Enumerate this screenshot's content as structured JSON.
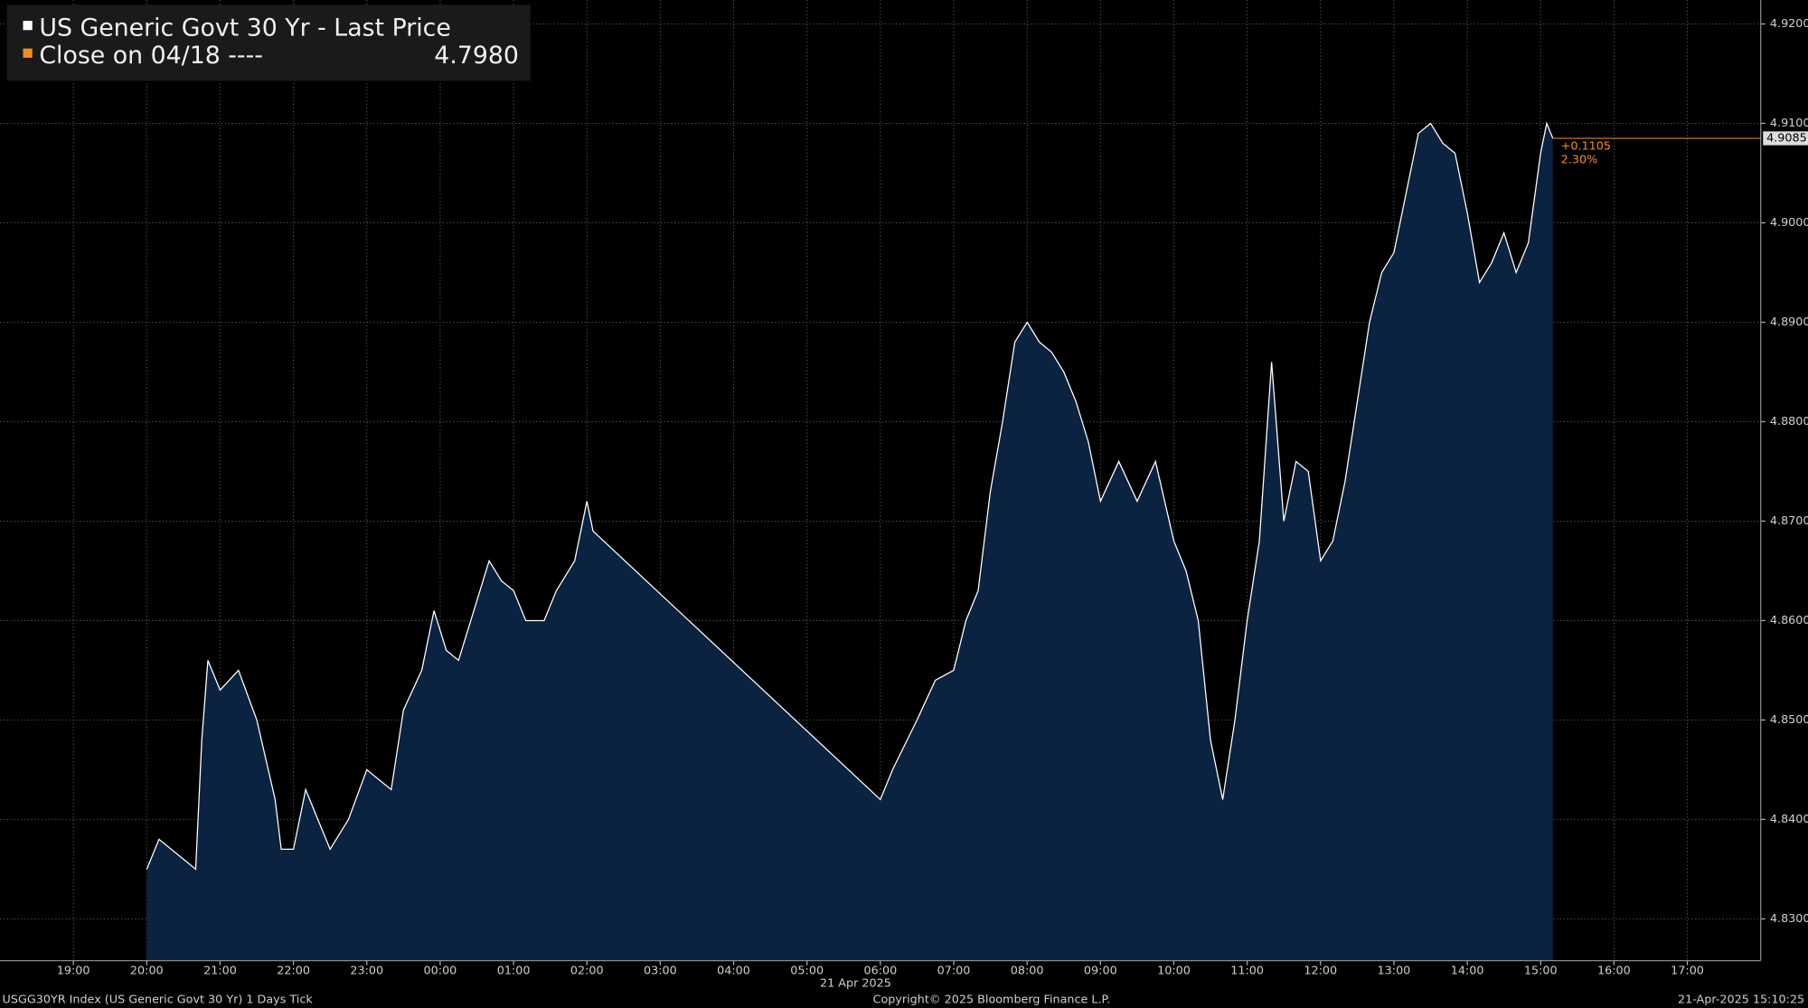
{
  "chart_data": {
    "type": "line",
    "legend": [
      {
        "name": "US Generic Govt 30 Yr - Last Price",
        "color": "#ffffff"
      },
      {
        "name": "Close on 04/18 ----",
        "color": "#f28e1c",
        "value": 4.798,
        "value_label": "4.7980"
      }
    ],
    "date_label": "21 Apr 2025",
    "footer_left": "USGG30YR Index (US Generic Govt 30 Yr) 1 Days  Tick",
    "footer_center": "Copyright© 2025 Bloomberg Finance L.P.",
    "footer_right": "21-Apr-2025 15:10:25",
    "last_price": 4.9085,
    "change_label": "+0.1105",
    "change_pct_label": "2.30%",
    "series": [
      {
        "name": "US Generic Govt 30 Yr - Last Price",
        "color": "#ffffff",
        "fill": "#0b2240",
        "x": [
          "2025-04-20T20:00",
          "2025-04-20T20:10",
          "2025-04-20T20:30",
          "2025-04-20T20:40",
          "2025-04-20T20:45",
          "2025-04-20T20:50",
          "2025-04-20T21:00",
          "2025-04-20T21:15",
          "2025-04-20T21:30",
          "2025-04-20T21:45",
          "2025-04-20T21:50",
          "2025-04-20T22:00",
          "2025-04-20T22:10",
          "2025-04-20T22:20",
          "2025-04-20T22:30",
          "2025-04-20T22:45",
          "2025-04-20T23:00",
          "2025-04-20T23:10",
          "2025-04-20T23:20",
          "2025-04-20T23:30",
          "2025-04-20T23:45",
          "2025-04-20T23:55",
          "2025-04-21T00:05",
          "2025-04-21T00:15",
          "2025-04-21T00:20",
          "2025-04-21T00:30",
          "2025-04-21T00:40",
          "2025-04-21T00:50",
          "2025-04-21T01:00",
          "2025-04-21T01:10",
          "2025-04-21T01:25",
          "2025-04-21T01:35",
          "2025-04-21T01:50",
          "2025-04-21T02:00",
          "2025-04-21T02:05",
          "2025-04-21T06:00",
          "2025-04-21T06:10",
          "2025-04-21T06:30",
          "2025-04-21T06:45",
          "2025-04-21T07:00",
          "2025-04-21T07:10",
          "2025-04-21T07:20",
          "2025-04-21T07:30",
          "2025-04-21T07:40",
          "2025-04-21T07:50",
          "2025-04-21T08:00",
          "2025-04-21T08:10",
          "2025-04-21T08:20",
          "2025-04-21T08:30",
          "2025-04-21T08:40",
          "2025-04-21T08:50",
          "2025-04-21T09:00",
          "2025-04-21T09:15",
          "2025-04-21T09:30",
          "2025-04-21T09:45",
          "2025-04-21T10:00",
          "2025-04-21T10:10",
          "2025-04-21T10:20",
          "2025-04-21T10:30",
          "2025-04-21T10:40",
          "2025-04-21T10:50",
          "2025-04-21T11:00",
          "2025-04-21T11:10",
          "2025-04-21T11:20",
          "2025-04-21T11:30",
          "2025-04-21T11:40",
          "2025-04-21T11:50",
          "2025-04-21T12:00",
          "2025-04-21T12:10",
          "2025-04-21T12:20",
          "2025-04-21T12:30",
          "2025-04-21T12:40",
          "2025-04-21T12:50",
          "2025-04-21T13:00",
          "2025-04-21T13:10",
          "2025-04-21T13:20",
          "2025-04-21T13:30",
          "2025-04-21T13:40",
          "2025-04-21T13:50",
          "2025-04-21T14:00",
          "2025-04-21T14:10",
          "2025-04-21T14:20",
          "2025-04-21T14:30",
          "2025-04-21T14:40",
          "2025-04-21T14:50",
          "2025-04-21T15:00",
          "2025-04-21T15:05",
          "2025-04-21T15:10"
        ],
        "values": [
          4.835,
          4.838,
          4.836,
          4.835,
          4.848,
          4.856,
          4.853,
          4.855,
          4.85,
          4.842,
          4.837,
          4.837,
          4.843,
          4.84,
          4.837,
          4.84,
          4.845,
          4.844,
          4.843,
          4.851,
          4.855,
          4.861,
          4.857,
          4.856,
          4.858,
          4.862,
          4.866,
          4.864,
          4.863,
          4.86,
          4.86,
          4.863,
          4.866,
          4.872,
          4.869,
          4.842,
          4.845,
          4.85,
          4.854,
          4.855,
          4.86,
          4.863,
          4.873,
          4.88,
          4.888,
          4.89,
          4.888,
          4.887,
          4.885,
          4.882,
          4.878,
          4.872,
          4.876,
          4.872,
          4.876,
          4.868,
          4.865,
          4.86,
          4.848,
          4.842,
          4.85,
          4.86,
          4.868,
          4.886,
          4.87,
          4.876,
          4.875,
          4.866,
          4.868,
          4.874,
          4.882,
          4.89,
          4.895,
          4.897,
          4.903,
          4.909,
          4.91,
          4.908,
          4.907,
          4.901,
          4.894,
          4.896,
          4.899,
          4.895,
          4.898,
          4.907,
          4.91,
          4.9085
        ]
      }
    ],
    "xlim": [
      "2025-04-20T18:00",
      "2025-04-21T18:00"
    ],
    "xticks": [
      {
        "value": "2025-04-20T19:00",
        "label": "19:00"
      },
      {
        "value": "2025-04-20T20:00",
        "label": "20:00"
      },
      {
        "value": "2025-04-20T21:00",
        "label": "21:00"
      },
      {
        "value": "2025-04-20T22:00",
        "label": "22:00"
      },
      {
        "value": "2025-04-20T23:00",
        "label": "23:00"
      },
      {
        "value": "2025-04-21T00:00",
        "label": "00:00"
      },
      {
        "value": "2025-04-21T01:00",
        "label": "01:00"
      },
      {
        "value": "2025-04-21T02:00",
        "label": "02:00"
      },
      {
        "value": "2025-04-21T03:00",
        "label": "03:00"
      },
      {
        "value": "2025-04-21T04:00",
        "label": "04:00"
      },
      {
        "value": "2025-04-21T05:00",
        "label": "05:00"
      },
      {
        "value": "2025-04-21T06:00",
        "label": "06:00"
      },
      {
        "value": "2025-04-21T07:00",
        "label": "07:00"
      },
      {
        "value": "2025-04-21T08:00",
        "label": "08:00"
      },
      {
        "value": "2025-04-21T09:00",
        "label": "09:00"
      },
      {
        "value": "2025-04-21T10:00",
        "label": "10:00"
      },
      {
        "value": "2025-04-21T11:00",
        "label": "11:00"
      },
      {
        "value": "2025-04-21T12:00",
        "label": "12:00"
      },
      {
        "value": "2025-04-21T13:00",
        "label": "13:00"
      },
      {
        "value": "2025-04-21T14:00",
        "label": "14:00"
      },
      {
        "value": "2025-04-21T15:00",
        "label": "15:00"
      },
      {
        "value": "2025-04-21T16:00",
        "label": "16:00"
      },
      {
        "value": "2025-04-21T17:00",
        "label": "17:00"
      }
    ],
    "ylim": [
      4.8258,
      4.9224
    ],
    "yticks": [
      {
        "value": 4.83,
        "label": "4.8300"
      },
      {
        "value": 4.84,
        "label": "4.8400"
      },
      {
        "value": 4.85,
        "label": "4.8500"
      },
      {
        "value": 4.86,
        "label": "4.8600"
      },
      {
        "value": 4.87,
        "label": "4.8700"
      },
      {
        "value": 4.88,
        "label": "4.8800"
      },
      {
        "value": 4.89,
        "label": "4.8900"
      },
      {
        "value": 4.9,
        "label": "4.9000"
      },
      {
        "value": 4.91,
        "label": "4.9100"
      },
      {
        "value": 4.92,
        "label": "4.9200"
      }
    ],
    "grid": true,
    "last_price_color": "#f28e1c"
  }
}
